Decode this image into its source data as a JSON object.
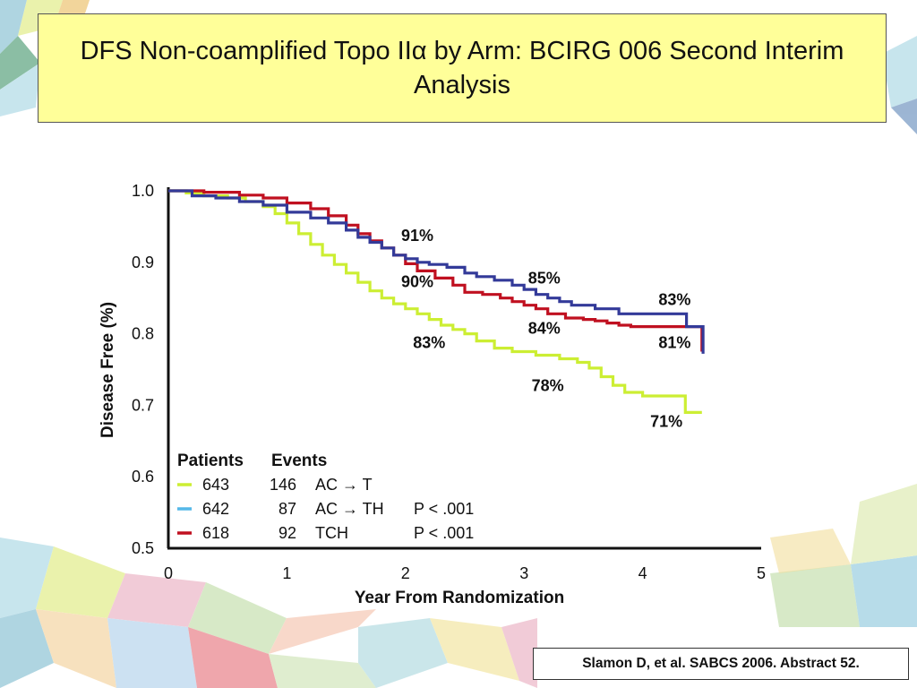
{
  "colors": {
    "ac_t": "#ccee33",
    "ac_th": "#333a99",
    "tch": "#c01020",
    "legend_ac_th": "#55b8e8",
    "title_bg": "#ffff99"
  },
  "chart_data": {
    "type": "line",
    "title": "DFS Non-coamplified Topo IIα by Arm: BCIRG 006 Second Interim Analysis",
    "xlabel": "Year From Randomization",
    "ylabel": "Disease Free (%)",
    "xlim": [
      0,
      5
    ],
    "ylim": [
      0.5,
      1.0
    ],
    "x_ticks": [
      "0",
      "1",
      "2",
      "3",
      "4",
      "5"
    ],
    "y_ticks": [
      "1.0",
      "0.9",
      "0.8",
      "0.7",
      "0.6",
      "0.5"
    ],
    "series": [
      {
        "key": "ac_t",
        "name": "AC → T",
        "patients": "643",
        "events": "146",
        "p_value": "",
        "x": [
          0,
          0.15,
          0.3,
          0.5,
          0.65,
          0.8,
          0.9,
          1.0,
          1.1,
          1.2,
          1.3,
          1.4,
          1.5,
          1.6,
          1.7,
          1.8,
          1.9,
          2.0,
          2.1,
          2.2,
          2.3,
          2.4,
          2.5,
          2.6,
          2.75,
          2.9,
          3.1,
          3.3,
          3.45,
          3.55,
          3.65,
          3.75,
          3.85,
          4.0,
          4.2,
          4.35,
          4.36,
          4.5
        ],
        "y": [
          1.0,
          0.997,
          0.993,
          0.99,
          0.985,
          0.978,
          0.968,
          0.955,
          0.94,
          0.925,
          0.91,
          0.897,
          0.885,
          0.872,
          0.86,
          0.85,
          0.842,
          0.835,
          0.828,
          0.82,
          0.812,
          0.806,
          0.8,
          0.79,
          0.78,
          0.775,
          0.77,
          0.765,
          0.76,
          0.752,
          0.74,
          0.728,
          0.718,
          0.713,
          0.713,
          0.713,
          0.69,
          0.69
        ]
      },
      {
        "key": "ac_th",
        "name": "AC → TH",
        "patients": "642",
        "events": "87",
        "p_value": "P < .001",
        "x": [
          0,
          0.2,
          0.4,
          0.6,
          0.8,
          1.0,
          1.2,
          1.35,
          1.5,
          1.6,
          1.7,
          1.8,
          1.9,
          2.0,
          2.1,
          2.2,
          2.35,
          2.5,
          2.6,
          2.75,
          2.9,
          3.0,
          3.1,
          3.2,
          3.3,
          3.4,
          3.5,
          3.6,
          3.8,
          4.0,
          4.2,
          4.36,
          4.37,
          4.5,
          4.51
        ],
        "y": [
          1.0,
          0.993,
          0.99,
          0.985,
          0.98,
          0.97,
          0.962,
          0.955,
          0.945,
          0.935,
          0.928,
          0.92,
          0.91,
          0.905,
          0.9,
          0.897,
          0.893,
          0.885,
          0.88,
          0.875,
          0.868,
          0.862,
          0.855,
          0.85,
          0.845,
          0.84,
          0.84,
          0.835,
          0.828,
          0.828,
          0.828,
          0.828,
          0.81,
          0.81,
          0.772
        ]
      },
      {
        "key": "tch",
        "name": "TCH",
        "patients": "618",
        "events": "92",
        "p_value": "P < .001",
        "x": [
          0,
          0.3,
          0.6,
          0.8,
          1.0,
          1.2,
          1.35,
          1.5,
          1.6,
          1.7,
          1.8,
          1.9,
          2.0,
          2.1,
          2.25,
          2.4,
          2.5,
          2.65,
          2.8,
          2.9,
          3.0,
          3.1,
          3.2,
          3.35,
          3.5,
          3.6,
          3.7,
          3.8,
          3.9,
          4.2,
          4.35,
          4.5,
          4.5
        ],
        "y": [
          1.0,
          0.998,
          0.994,
          0.99,
          0.983,
          0.975,
          0.965,
          0.952,
          0.94,
          0.93,
          0.92,
          0.91,
          0.898,
          0.888,
          0.878,
          0.868,
          0.858,
          0.855,
          0.85,
          0.845,
          0.84,
          0.835,
          0.828,
          0.822,
          0.82,
          0.818,
          0.815,
          0.812,
          0.81,
          0.81,
          0.81,
          0.81,
          0.775
        ]
      }
    ],
    "annotations": [
      {
        "text": "91%",
        "series": "ac_th",
        "x": 2.1,
        "y": 0.93
      },
      {
        "text": "90%",
        "series": "tch",
        "x": 2.1,
        "y": 0.865
      },
      {
        "text": "83%",
        "series": "ac_t",
        "x": 2.2,
        "y": 0.78
      },
      {
        "text": "85%",
        "series": "ac_th",
        "x": 3.17,
        "y": 0.87
      },
      {
        "text": "84%",
        "series": "tch",
        "x": 3.17,
        "y": 0.8
      },
      {
        "text": "78%",
        "series": "ac_t",
        "x": 3.2,
        "y": 0.72
      },
      {
        "text": "83%",
        "series": "ac_th",
        "x": 4.27,
        "y": 0.84
      },
      {
        "text": "81%",
        "series": "tch",
        "x": 4.27,
        "y": 0.78
      },
      {
        "text": "71%",
        "series": "ac_t",
        "x": 4.2,
        "y": 0.67
      }
    ],
    "legend": {
      "placement": "bottom-left",
      "header_patients": "Patients",
      "header_events": "Events"
    }
  },
  "citation": "Slamon D, et al. SABCS 2006. Abstract 52."
}
